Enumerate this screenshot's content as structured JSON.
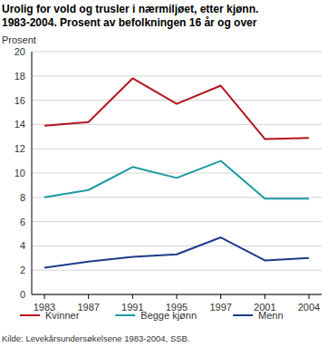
{
  "chart_data": {
    "type": "line",
    "title": "Urolig for vold og trusler i nærmiljøet, etter kjønn.",
    "subtitle": "1983-2004. Prosent av befolkningen 16 år og over",
    "y_label": "Prosent",
    "source": "Kilde: Levekårsundersøkelsene 1983-2004, SSB.",
    "categories": [
      "1983",
      "1987",
      "1991",
      "1995",
      "1997",
      "2001",
      "2004"
    ],
    "series": [
      {
        "name": "Kvinner",
        "color": "#b3141e",
        "values": [
          13.9,
          14.2,
          17.8,
          15.7,
          17.2,
          12.8,
          12.9
        ]
      },
      {
        "name": "Begge kjønn",
        "color": "#1c9ba1",
        "values": [
          8.0,
          8.6,
          10.5,
          9.6,
          11.0,
          7.9,
          7.9
        ]
      },
      {
        "name": "Menn",
        "color": "#1f3a89",
        "values": [
          2.2,
          2.7,
          3.1,
          3.3,
          4.7,
          2.8,
          3.0
        ]
      }
    ],
    "ylim": [
      0,
      20
    ],
    "yticks": [
      0,
      2,
      4,
      6,
      8,
      10,
      12,
      14,
      16,
      18,
      20
    ],
    "grid": true,
    "legend": "bottom"
  }
}
